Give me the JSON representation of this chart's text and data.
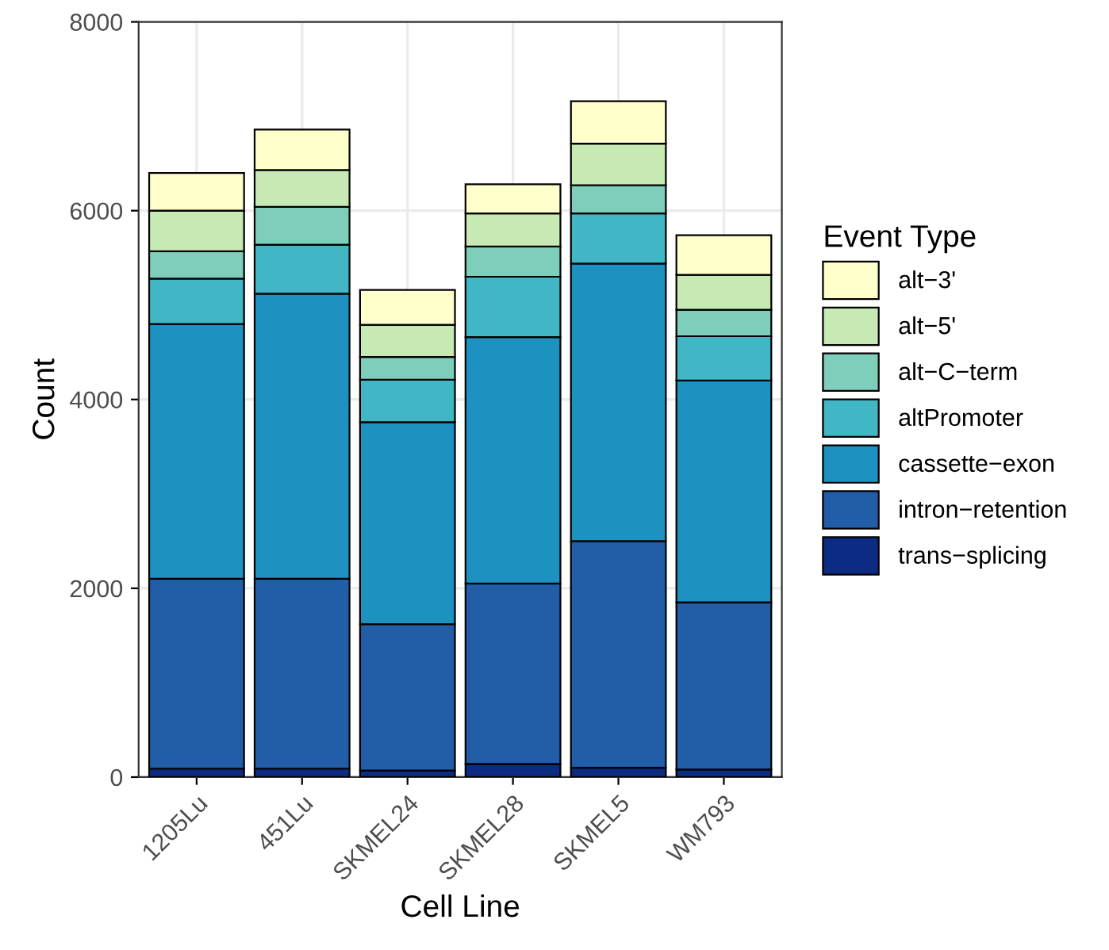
{
  "chart_data": {
    "type": "bar",
    "stacked": true,
    "xlabel": "Cell Line",
    "ylabel": "Count",
    "legend_title": "Event Type",
    "legend": "right",
    "grid": true,
    "categories": [
      "1205Lu",
      "451Lu",
      "SKMEL24",
      "SKMEL28",
      "SKMEL5",
      "WM793"
    ],
    "ylim": [
      0,
      8000
    ],
    "yticks": [
      0,
      2000,
      4000,
      6000,
      8000
    ],
    "series": [
      {
        "name": "trans−splicing",
        "color": "#0c2c84",
        "values": [
          90,
          90,
          70,
          140,
          100,
          80
        ]
      },
      {
        "name": "intron−retention",
        "color": "#225ea8",
        "values": [
          2010,
          2010,
          1550,
          1910,
          2400,
          1770
        ]
      },
      {
        "name": "cassette−exon",
        "color": "#1d91c0",
        "values": [
          2700,
          3020,
          2140,
          2610,
          2940,
          2350
        ]
      },
      {
        "name": "altPromoter",
        "color": "#41b6c4",
        "values": [
          480,
          520,
          450,
          640,
          530,
          470
        ]
      },
      {
        "name": "alt−C−term",
        "color": "#7fcdbb",
        "values": [
          290,
          400,
          240,
          320,
          300,
          280
        ]
      },
      {
        "name": "alt−5'",
        "color": "#c7e9b4",
        "values": [
          430,
          390,
          340,
          350,
          440,
          370
        ]
      },
      {
        "name": "alt−3'",
        "color": "#ffffcc",
        "values": [
          400,
          430,
          370,
          310,
          450,
          420
        ]
      }
    ]
  }
}
